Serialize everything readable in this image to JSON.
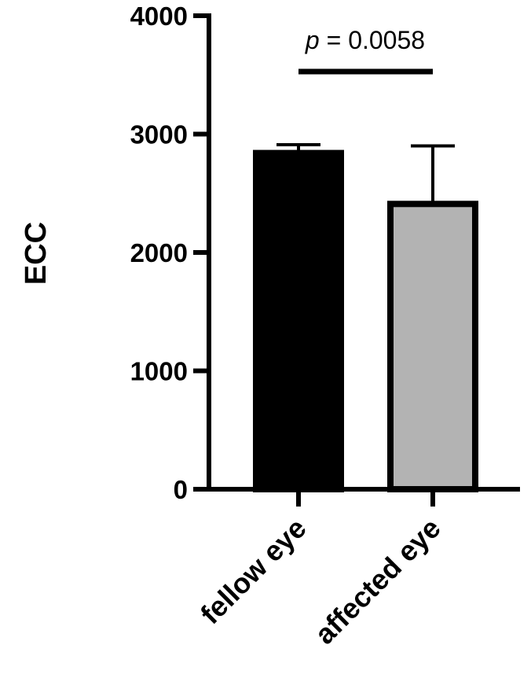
{
  "chart_data": {
    "type": "bar",
    "categories": [
      "fellow eye",
      "affected eye"
    ],
    "values": [
      2840,
      2410
    ],
    "error_upper": [
      2910,
      2900
    ],
    "bar_colors": [
      "#000000",
      "#b3b3b3"
    ],
    "ylabel": "ECC",
    "xlabel": "",
    "ylim": [
      0,
      4000
    ],
    "yticks": [
      0,
      1000,
      2000,
      3000,
      4000
    ],
    "ytick_labels": [
      "0",
      "1000",
      "2000",
      "3000",
      "4000"
    ],
    "grid": false,
    "annotation": {
      "p_symbol": "p",
      "p_rest": " = 0.0058",
      "between": [
        "fellow eye",
        "affected eye"
      ]
    }
  }
}
